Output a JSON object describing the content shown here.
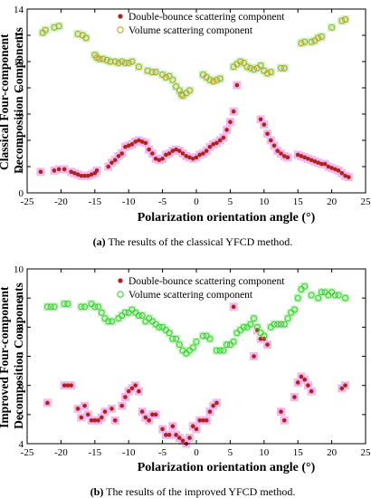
{
  "chart_data": [
    {
      "type": "scatter",
      "title": "",
      "xlabel": "Polarization orientation angle (°)",
      "ylabel": [
        "Classical Four-component",
        "Decomposition Components"
      ],
      "xlim": [
        -25,
        25
      ],
      "ylim": [
        0,
        14
      ],
      "xticks": [
        -25,
        -20,
        -15,
        -10,
        -5,
        0,
        5,
        10,
        15,
        20,
        25
      ],
      "yticks": [
        0,
        2,
        4,
        6,
        8,
        10,
        12,
        14
      ],
      "grid": false,
      "legend": "top-center",
      "caption_label": "(a)",
      "caption_text": " The results of the classical YFCD method.",
      "series": [
        {
          "name": "Double-bounce scattering component",
          "marker": "filled-circle",
          "color": "#b0221e",
          "halo": "#f2b8ee",
          "x": [
            -23,
            -21,
            -20.3,
            -19.5,
            -18.5,
            -18,
            -17.5,
            -17,
            -16.5,
            -16,
            -15.5,
            -15,
            -14.7,
            -13,
            -12.5,
            -12,
            -11.5,
            -11,
            -10.5,
            -10,
            -9.5,
            -9,
            -8.5,
            -8,
            -7.5,
            -7,
            -6.5,
            -6,
            -5.5,
            -5,
            -4.5,
            -4,
            -3.5,
            -3,
            -2.5,
            -2,
            -1.5,
            -1,
            -0.5,
            0,
            0.5,
            1,
            1.5,
            2,
            2.5,
            3,
            3.5,
            4,
            4.5,
            5,
            5.5,
            6,
            9.5,
            10,
            10.5,
            11,
            11.5,
            12,
            12.5,
            13,
            13.5,
            15,
            15.5,
            16,
            16.5,
            17,
            17.5,
            18,
            18.5,
            19,
            19.5,
            20,
            20.5,
            21,
            21.5,
            22,
            22.5
          ],
          "y": [
            1.6,
            1.7,
            1.8,
            1.8,
            1.6,
            1.5,
            1.4,
            1.3,
            1.3,
            1.3,
            1.4,
            1.5,
            1.7,
            2.0,
            2.3,
            2.5,
            2.8,
            3.0,
            3.5,
            3.6,
            3.7,
            3.9,
            4.0,
            3.9,
            3.8,
            3.3,
            3.0,
            2.6,
            2.5,
            2.6,
            2.9,
            3.0,
            3.2,
            3.3,
            3.2,
            3.0,
            2.8,
            2.7,
            2.6,
            2.7,
            2.9,
            3.0,
            3.2,
            3.5,
            3.7,
            3.8,
            4.0,
            4.2,
            4.8,
            5.4,
            6.2,
            8.2,
            5.6,
            5.2,
            4.5,
            4.0,
            3.6,
            3.2,
            3.0,
            2.8,
            2.7,
            2.9,
            2.8,
            2.7,
            2.6,
            2.5,
            2.4,
            2.3,
            2.2,
            2.2,
            2.0,
            1.9,
            1.8,
            1.7,
            1.5,
            1.3,
            1.2
          ]
        },
        {
          "name": "Volume scattering component",
          "marker": "open-circle",
          "color": "#b8a018",
          "halo": "#c8f2c0",
          "x": [
            -22.7,
            -22.3,
            -21,
            -20.3,
            -17.5,
            -16.8,
            -16.3,
            -15,
            -14.7,
            -14.3,
            -13.8,
            -13.2,
            -12.7,
            -12,
            -11.5,
            -11,
            -10.5,
            -10,
            -9.5,
            -8.5,
            -7.2,
            -6.5,
            -6,
            -5,
            -4.5,
            -4,
            -3.5,
            -3,
            -2.5,
            -2.2,
            -2,
            -1.5,
            -1,
            1,
            1.5,
            2,
            2.5,
            3,
            3.5,
            5.5,
            6,
            6.5,
            7,
            7.5,
            8,
            8.5,
            9,
            9.5,
            10,
            10.5,
            11,
            12.5,
            13,
            15.5,
            16,
            17,
            17.5,
            18,
            18.5,
            20,
            21.5,
            22
          ],
          "y": [
            12.2,
            12.4,
            12.6,
            12.7,
            12.1,
            12.0,
            11.8,
            10.5,
            10.3,
            10.2,
            10.2,
            10.1,
            10.0,
            10.0,
            9.9,
            10.0,
            9.9,
            9.9,
            10.0,
            9.6,
            9.3,
            9.2,
            9.2,
            9.0,
            8.8,
            8.9,
            8.6,
            8.1,
            7.8,
            7.5,
            7.4,
            7.6,
            7.8,
            9.0,
            8.8,
            8.6,
            8.5,
            8.6,
            8.7,
            9.6,
            9.8,
            10.0,
            9.9,
            9.6,
            9.5,
            9.4,
            9.5,
            9.7,
            9.3,
            9.1,
            9.2,
            9.5,
            9.5,
            11.4,
            11.5,
            11.5,
            11.6,
            11.8,
            11.9,
            12.6,
            13.1,
            13.2
          ]
        }
      ]
    },
    {
      "type": "scatter",
      "title": "",
      "xlabel": "Polarization orientation angle (°)",
      "ylabel": [
        "Improved Four-component",
        "Decomposition Components"
      ],
      "xlim": [
        -25,
        25
      ],
      "ylim": [
        4,
        10
      ],
      "xticks": [
        -25,
        -20,
        -15,
        -10,
        -5,
        0,
        5,
        10,
        15,
        20,
        25
      ],
      "yticks": [
        4,
        5,
        6,
        7,
        8,
        9,
        10
      ],
      "grid": false,
      "legend": "top-center",
      "caption_label": "(b)",
      "caption_text": " The results of the improved YFCD method.",
      "series": [
        {
          "name": "Double-bounce scattering component",
          "marker": "filled-circle",
          "color": "#b0221e",
          "halo": "#f2b8ee",
          "x": [
            -22,
            -19.5,
            -19,
            -18.5,
            -17.5,
            -17,
            -16.5,
            -16,
            -15.5,
            -15,
            -14.5,
            -14,
            -13.5,
            -12.5,
            -12,
            -11,
            -10.5,
            -10,
            -9.5,
            -9,
            -8.5,
            -8,
            -7.5,
            -7,
            -6.5,
            -6,
            -5,
            -4.5,
            -4,
            -3.5,
            -3,
            -2.5,
            -2,
            -1.5,
            -1,
            -0.5,
            0,
            0.5,
            1,
            1.5,
            2,
            2.5,
            3,
            5.5,
            8.5,
            9,
            9.5,
            10,
            10.5,
            12.5,
            13,
            14.5,
            15,
            15.5,
            16,
            16.5,
            17,
            21.5,
            22
          ],
          "y": [
            5.4,
            6.0,
            6.0,
            6.0,
            5.2,
            4.9,
            5.3,
            5.0,
            4.8,
            4.8,
            4.8,
            4.9,
            5.1,
            5.2,
            4.8,
            5.3,
            5.6,
            5.8,
            5.9,
            6.0,
            5.8,
            5.1,
            4.9,
            4.8,
            5.0,
            5.0,
            4.5,
            4.3,
            4.3,
            4.6,
            4.3,
            4.2,
            4.1,
            4.0,
            4.2,
            4.6,
            4.5,
            4.8,
            4.8,
            4.8,
            5.1,
            5.3,
            5.4,
            8.7,
            7.0,
            7.9,
            7.6,
            7.6,
            7.4,
            5.1,
            4.8,
            5.6,
            6.1,
            6.3,
            6.2,
            6.0,
            5.8,
            5.9,
            6.0
          ]
        },
        {
          "name": "Volume scattering component",
          "marker": "open-circle",
          "color": "#2fd02f",
          "halo": "#c8f2c0",
          "x": [
            -22,
            -21.5,
            -21,
            -19.5,
            -19,
            -17,
            -16.5,
            -15.5,
            -15,
            -14.5,
            -14,
            -13.5,
            -13,
            -12.5,
            -11.5,
            -11,
            -10.5,
            -10,
            -9.5,
            -9,
            -8.5,
            -8,
            -7.5,
            -7,
            -6.5,
            -6,
            -5.5,
            -5,
            -4.5,
            -4,
            -3.5,
            -3,
            -2.5,
            -2,
            -1.5,
            -1,
            -0.5,
            0,
            1,
            1.5,
            2,
            3,
            3.5,
            4,
            4.5,
            5,
            5.5,
            6,
            6.5,
            7,
            7.5,
            8,
            8.5,
            9,
            9.5,
            10,
            11,
            11.5,
            12,
            12.5,
            13,
            13.5,
            14,
            14.5,
            15,
            15.5,
            16,
            17,
            18,
            18.5,
            19,
            19.5,
            20,
            20.5,
            21,
            22
          ],
          "y": [
            8.7,
            8.7,
            8.7,
            8.8,
            8.8,
            8.7,
            8.7,
            8.8,
            8.7,
            8.7,
            8.5,
            8.3,
            8.2,
            8.2,
            8.3,
            8.4,
            8.5,
            8.5,
            8.6,
            8.5,
            8.4,
            8.4,
            8.2,
            8.3,
            8.2,
            8.1,
            8.0,
            8.0,
            7.9,
            7.8,
            7.6,
            7.6,
            7.4,
            7.2,
            7.1,
            7.2,
            7.3,
            7.5,
            7.7,
            7.7,
            7.6,
            7.2,
            7.2,
            7.2,
            7.4,
            7.4,
            7.5,
            7.8,
            7.9,
            8.0,
            8.0,
            8.1,
            8.3,
            8.0,
            7.8,
            7.7,
            8.0,
            8.1,
            8.1,
            8.1,
            8.1,
            8.3,
            8.5,
            8.6,
            9.0,
            9.3,
            9.4,
            9.1,
            9.0,
            9.2,
            9.2,
            9.1,
            9.2,
            9.1,
            9.1,
            9.0
          ]
        }
      ]
    }
  ]
}
